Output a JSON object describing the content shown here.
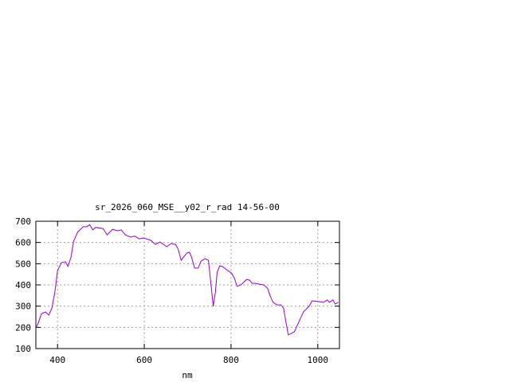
{
  "chart_data": {
    "type": "line",
    "title": "sr_2026_060_MSE__y02_r_rad 14-56-00",
    "xlabel": "nm",
    "ylabel": "",
    "xlim": [
      350,
      1050
    ],
    "ylim": [
      100,
      700
    ],
    "xticks": [
      400,
      600,
      800,
      1000
    ],
    "yticks": [
      100,
      200,
      300,
      400,
      500,
      600,
      700
    ],
    "grid": true,
    "line_color": "#9400d3",
    "series": [
      {
        "x": [
          350,
          354,
          363,
          372,
          380,
          387,
          394,
          400,
          409,
          418,
          424,
          431,
          437,
          446,
          459,
          468,
          474,
          481,
          488,
          505,
          514,
          527,
          538,
          547,
          556,
          569,
          578,
          588,
          599,
          615,
          626,
          636,
          652,
          661,
          672,
          678,
          685,
          698,
          704,
          709,
          716,
          724,
          731,
          740,
          748,
          753,
          759,
          764,
          768,
          774,
          781,
          790,
          801,
          808,
          814,
          823,
          836,
          843,
          849,
          856,
          864,
          875,
          884,
          891,
          897,
          906,
          915,
          921,
          926,
          932,
          946,
          956,
          967,
          980,
          987,
          1004,
          1013,
          1022,
          1027,
          1035,
          1040,
          1047
        ],
        "y": [
          199,
          212,
          265,
          272,
          258,
          291,
          367,
          467,
          505,
          509,
          487,
          531,
          606,
          648,
          674,
          674,
          684,
          659,
          671,
          665,
          636,
          662,
          655,
          659,
          636,
          625,
          630,
          617,
          621,
          610,
          591,
          602,
          580,
          595,
          591,
          569,
          516,
          550,
          554,
          531,
          479,
          479,
          512,
          524,
          516,
          419,
          299,
          366,
          460,
          490,
          486,
          471,
          456,
          430,
          393,
          400,
          426,
          422,
          407,
          407,
          404,
          400,
          385,
          344,
          318,
          306,
          306,
          291,
          231,
          164,
          179,
          224,
          273,
          299,
          325,
          321,
          318,
          329,
          318,
          329,
          310,
          318
        ]
      }
    ]
  }
}
